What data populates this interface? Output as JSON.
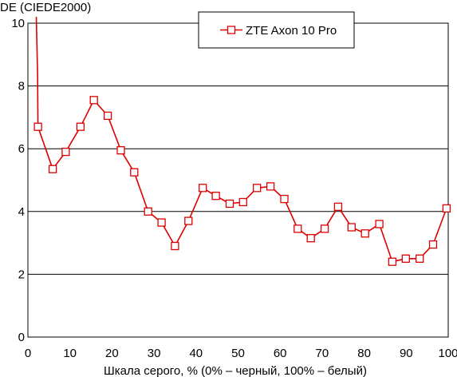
{
  "chart_data": {
    "type": "line",
    "title": "",
    "ylabel": "DE (CIEDE2000)",
    "xlabel": "Шкала серого, % (0% – черный, 100% – белый)",
    "xlim": [
      0,
      100
    ],
    "ylim": [
      0,
      10
    ],
    "x_ticks": [
      "0",
      "10",
      "20",
      "30",
      "40",
      "50",
      "60",
      "70",
      "80",
      "90",
      "100"
    ],
    "y_ticks": [
      "0",
      "2",
      "4",
      "6",
      "8",
      "10"
    ],
    "grid": "horizontal",
    "legend_position": "top-right",
    "series": [
      {
        "name": "ZTE Axon 10 Pro",
        "color": "#dd0000",
        "marker": "square",
        "leading_segment": [
          {
            "x": 2.0,
            "y": 10.2
          },
          {
            "x": 2.3,
            "y": 8.4
          }
        ],
        "points": [
          {
            "x": 2.4,
            "y": 6.7
          },
          {
            "x": 5.9,
            "y": 5.35
          },
          {
            "x": 9.0,
            "y": 5.9
          },
          {
            "x": 12.5,
            "y": 6.7
          },
          {
            "x": 15.7,
            "y": 7.55
          },
          {
            "x": 19.0,
            "y": 7.05
          },
          {
            "x": 22.1,
            "y": 5.95
          },
          {
            "x": 25.3,
            "y": 5.25
          },
          {
            "x": 28.6,
            "y": 4.0
          },
          {
            "x": 31.8,
            "y": 3.65
          },
          {
            "x": 35.0,
            "y": 2.9
          },
          {
            "x": 38.2,
            "y": 3.7
          },
          {
            "x": 41.6,
            "y": 4.75
          },
          {
            "x": 44.7,
            "y": 4.5
          },
          {
            "x": 48.0,
            "y": 4.25
          },
          {
            "x": 51.2,
            "y": 4.3
          },
          {
            "x": 54.5,
            "y": 4.75
          },
          {
            "x": 57.7,
            "y": 4.8
          },
          {
            "x": 61.0,
            "y": 4.4
          },
          {
            "x": 64.2,
            "y": 3.45
          },
          {
            "x": 67.3,
            "y": 3.15
          },
          {
            "x": 70.6,
            "y": 3.45
          },
          {
            "x": 73.8,
            "y": 4.15
          },
          {
            "x": 77.0,
            "y": 3.5
          },
          {
            "x": 80.2,
            "y": 3.3
          },
          {
            "x": 83.6,
            "y": 3.6
          },
          {
            "x": 86.7,
            "y": 2.4
          },
          {
            "x": 89.9,
            "y": 2.5
          },
          {
            "x": 93.2,
            "y": 2.5
          },
          {
            "x": 96.4,
            "y": 2.95
          },
          {
            "x": 99.6,
            "y": 4.1
          }
        ]
      }
    ]
  }
}
